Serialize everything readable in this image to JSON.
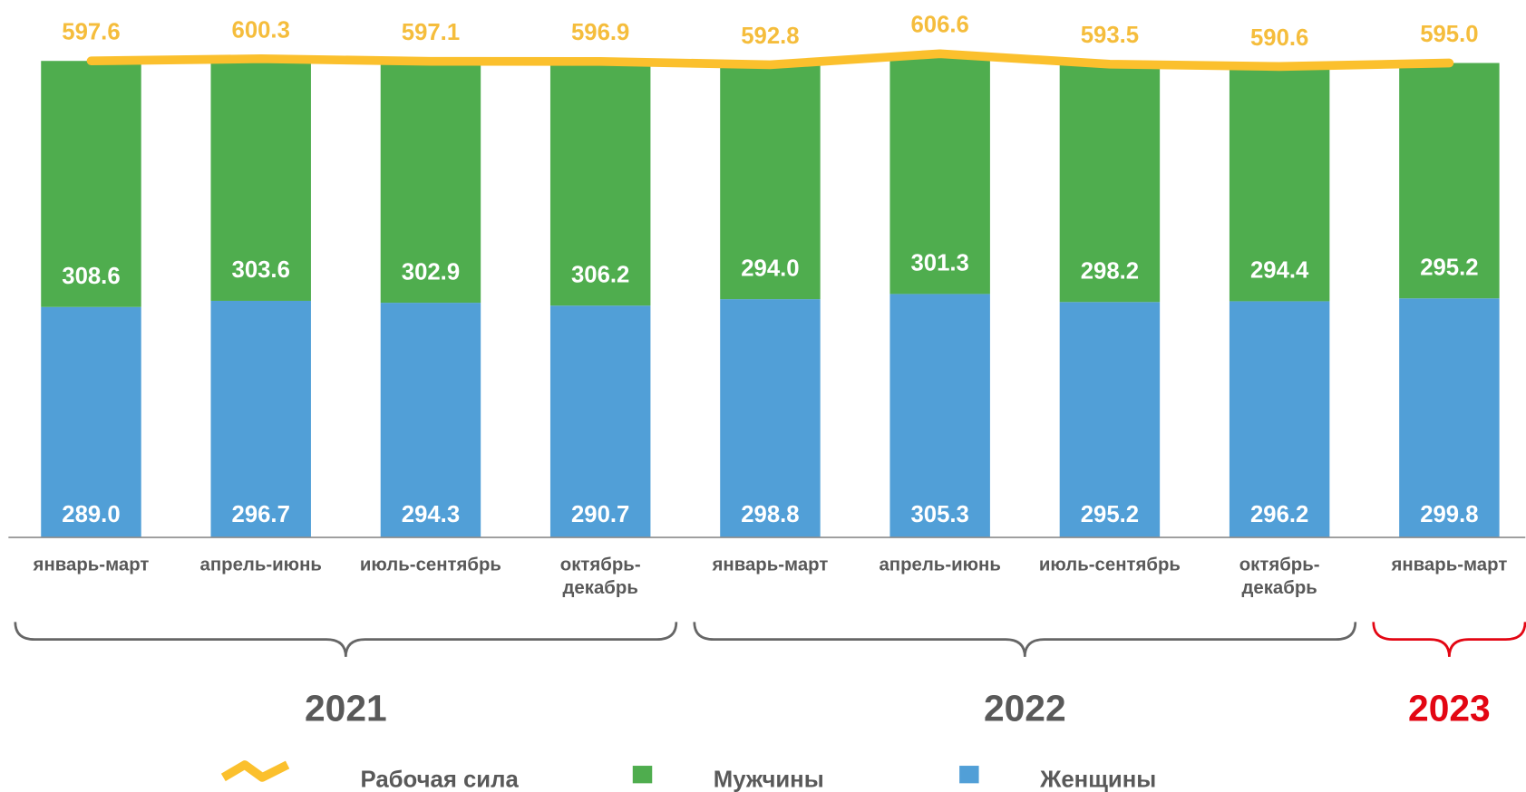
{
  "chart_data": {
    "type": "bar",
    "stacked": true,
    "categories": [
      "январь-март",
      "апрель-июнь",
      "июль-сентябрь",
      "октябрь-\nдекабрь",
      "январь-март",
      "апрель-июнь",
      "июль-сентябрь",
      "октябрь-\nдекабрь",
      "январь-март"
    ],
    "groups": [
      {
        "label": "2021",
        "count": 4,
        "color": "#595959"
      },
      {
        "label": "2022",
        "count": 4,
        "color": "#595959"
      },
      {
        "label": "2023",
        "count": 1,
        "color": "#e30613"
      }
    ],
    "series": [
      {
        "name": "Рабочая сила",
        "type": "line",
        "color": "#fbc02d",
        "values": [
          597.6,
          600.3,
          597.1,
          596.9,
          592.8,
          606.6,
          593.5,
          590.6,
          595.0
        ],
        "value_labels": [
          "597.6",
          "600.3",
          "597.1",
          "596.9",
          "592.8",
          "606.6",
          "593.5",
          "590.6",
          "595.0"
        ]
      },
      {
        "name": "Мужчины",
        "type": "bar",
        "color": "#4fad4e",
        "values": [
          308.6,
          303.6,
          302.9,
          306.2,
          294.0,
          301.3,
          298.2,
          294.4,
          295.2
        ],
        "value_labels": [
          "308.6",
          "303.6",
          "302.9",
          "306.2",
          "294.0",
          "301.3",
          "298.2",
          "294.4",
          "295.2"
        ]
      },
      {
        "name": "Женщины",
        "type": "bar",
        "color": "#519fd7",
        "values": [
          289.0,
          296.7,
          294.3,
          290.7,
          298.8,
          305.3,
          295.2,
          296.2,
          299.8
        ],
        "value_labels": [
          "289.0",
          "296.7",
          "294.3",
          "290.7",
          "298.8",
          "305.3",
          "295.2",
          "296.2",
          "299.8"
        ]
      }
    ],
    "ylim": [
      0,
      674
    ],
    "grid": false
  }
}
